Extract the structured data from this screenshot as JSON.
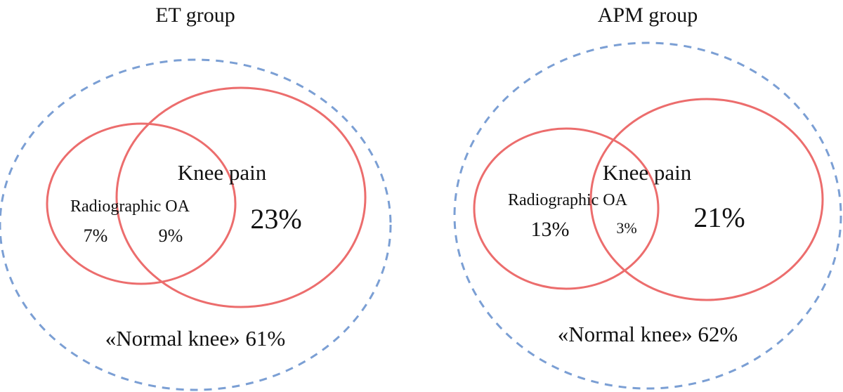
{
  "panels": [
    {
      "title": "ET group",
      "set_a_label": "Radiographic OA",
      "set_b_label": "Knee pain",
      "only_a": "7%",
      "overlap": "9%",
      "only_b": "23%",
      "outside": "«Normal knee» 61%"
    },
    {
      "title": "APM group",
      "set_a_label": "Radiographic OA",
      "set_b_label": "Knee pain",
      "only_a": "13%",
      "overlap": "3%",
      "only_b": "21%",
      "outside": "«Normal knee» 62%"
    }
  ],
  "colors": {
    "outer_dashed": "#7b9fd4",
    "set_circles": "#ec6d6d",
    "text": "#111111"
  }
}
